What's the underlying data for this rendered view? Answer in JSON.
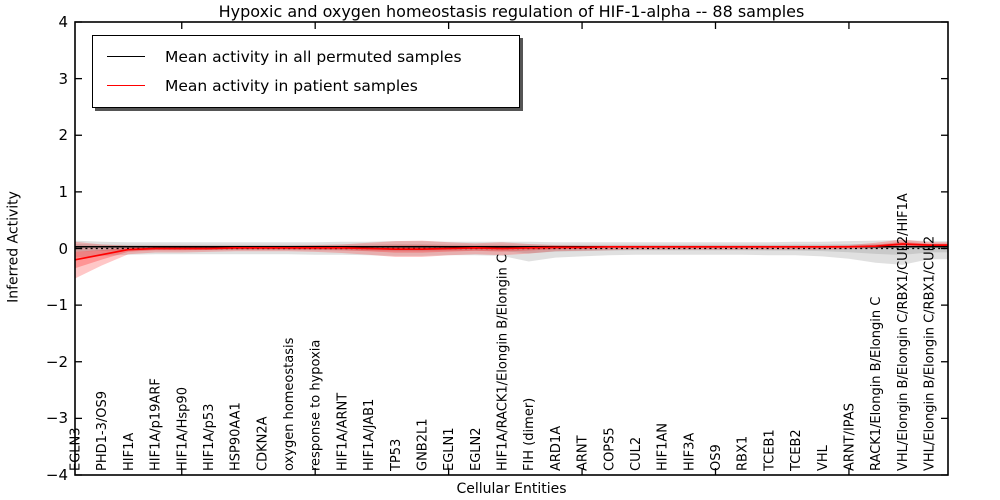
{
  "chart_data": {
    "type": "line",
    "title": "Hypoxic and oxygen homeostasis regulation of HIF-1-alpha -- 88 samples",
    "xlabel": "Cellular Entities",
    "ylabel": "Inferred Activity",
    "ylim": [
      -4,
      4
    ],
    "ytick_values": [
      4,
      3,
      2,
      1,
      0,
      -1,
      -2,
      -3,
      -4
    ],
    "ytick_labels": [
      "4",
      "3",
      "2",
      "1",
      "0",
      "−1",
      "−2",
      "−3",
      "−4"
    ],
    "grid": false,
    "legend_position": "upper left",
    "categories": [
      "EGLN3",
      "PHD1-3/OS9",
      "HIF1A",
      "HIF1A/p19ARF",
      "HIF1A/Hsp90",
      "HIF1A/p53",
      "HSP90AA1",
      "CDKN2A",
      "oxygen homeostasis",
      "response to hypoxia",
      "HIF1A/ARNT",
      "HIF1A/JAB1",
      "TP53",
      "GNB2L1",
      "EGLN1",
      "EGLN2",
      "HIF1A/RACK1/Elongin B/Elongin C",
      "FIH (dimer)",
      "ARD1A",
      "ARNT",
      "COPS5",
      "CUL2",
      "HIF1AN",
      "HIF3A",
      "OS9",
      "RBX1",
      "TCEB1",
      "TCEB2",
      "VHL",
      "ARNT/IPAS",
      "RACK1/Elongin B/Elongin C",
      "VHL/Elongin B/Elongin C/RBX1/CUL2/HIF1A",
      "VHL/Elongin B/Elongin C/RBX1/CUL2"
    ],
    "xtick_indices": [
      4,
      9,
      14,
      19,
      24,
      29
    ],
    "reference_line": {
      "value": 0,
      "style": "dotted",
      "color": "#000000"
    },
    "series": [
      {
        "name": "Mean activity in all permuted samples",
        "color": "#000000",
        "band_color": "#000000",
        "values": [
          0.03,
          0.03,
          0.03,
          0.03,
          0.03,
          0.03,
          0.03,
          0.03,
          0.03,
          0.03,
          0.03,
          0.03,
          0.03,
          0.03,
          0.03,
          0.03,
          0.03,
          0.03,
          0.03,
          0.03,
          0.03,
          0.03,
          0.03,
          0.03,
          0.03,
          0.03,
          0.03,
          0.03,
          0.03,
          0.03,
          0.03,
          0.03,
          0.03
        ],
        "band_upper": [
          0.14,
          0.12,
          0.11,
          0.11,
          0.11,
          0.11,
          0.11,
          0.11,
          0.11,
          0.11,
          0.12,
          0.12,
          0.13,
          0.13,
          0.12,
          0.12,
          0.12,
          0.12,
          0.11,
          0.11,
          0.11,
          0.11,
          0.11,
          0.11,
          0.11,
          0.11,
          0.11,
          0.12,
          0.12,
          0.13,
          0.14,
          0.15,
          0.13
        ],
        "band_lower": [
          -0.16,
          -0.13,
          -0.11,
          -0.1,
          -0.1,
          -0.1,
          -0.1,
          -0.1,
          -0.1,
          -0.11,
          -0.11,
          -0.12,
          -0.13,
          -0.13,
          -0.12,
          -0.12,
          -0.13,
          -0.23,
          -0.16,
          -0.14,
          -0.12,
          -0.11,
          -0.11,
          -0.11,
          -0.11,
          -0.11,
          -0.12,
          -0.12,
          -0.14,
          -0.18,
          -0.25,
          -0.29,
          -0.19
        ]
      },
      {
        "name": "Mean activity in patient samples",
        "color": "#ff0000",
        "band_color": "#ff0000",
        "values": [
          -0.2,
          -0.11,
          -0.02,
          0.0,
          0.0,
          0.0,
          0.01,
          0.01,
          0.01,
          0.01,
          0.01,
          0.0,
          -0.01,
          -0.01,
          0.0,
          0.01,
          0.0,
          0.01,
          0.02,
          0.02,
          0.03,
          0.03,
          0.03,
          0.03,
          0.03,
          0.03,
          0.03,
          0.03,
          0.03,
          0.03,
          0.04,
          0.08,
          0.06
        ],
        "band_upper": [
          0.12,
          0.07,
          0.05,
          0.05,
          0.05,
          0.05,
          0.05,
          0.05,
          0.05,
          0.06,
          0.07,
          0.1,
          0.13,
          0.14,
          0.11,
          0.09,
          0.11,
          0.08,
          0.06,
          0.05,
          0.05,
          0.05,
          0.05,
          0.05,
          0.05,
          0.05,
          0.05,
          0.05,
          0.05,
          0.06,
          0.1,
          0.16,
          0.11
        ],
        "band_lower": [
          -0.53,
          -0.3,
          -0.1,
          -0.07,
          -0.07,
          -0.06,
          -0.05,
          -0.05,
          -0.05,
          -0.06,
          -0.08,
          -0.11,
          -0.15,
          -0.15,
          -0.12,
          -0.1,
          -0.12,
          -0.09,
          -0.05,
          -0.04,
          -0.03,
          -0.02,
          -0.02,
          -0.02,
          -0.02,
          -0.02,
          -0.02,
          -0.02,
          -0.02,
          -0.01,
          0.0,
          0.02,
          0.02
        ]
      }
    ]
  }
}
